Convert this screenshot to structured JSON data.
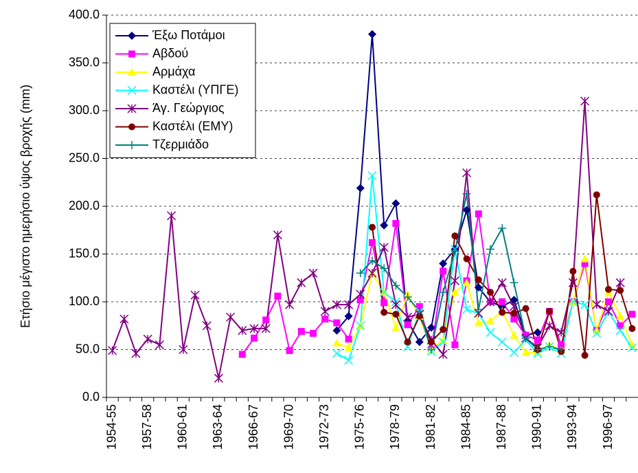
{
  "chart_data": {
    "type": "line",
    "y_label": "Ετήσιο μέγιστο ημερήσιο ύψος βροχής (mm)",
    "categories": [
      "1954-55",
      null,
      null,
      "1957-58",
      null,
      null,
      "1960-61",
      null,
      null,
      "1963-64",
      null,
      null,
      "1966-67",
      null,
      null,
      "1969-70",
      null,
      null,
      "1972-73",
      null,
      null,
      "1975-76",
      null,
      null,
      "1978-79",
      null,
      null,
      "1981-82",
      null,
      null,
      "1984-85",
      null,
      null,
      "1987-88",
      null,
      null,
      "1990-91",
      null,
      null,
      "1993-94",
      null,
      null,
      "1996-97",
      null,
      null
    ],
    "ylim": [
      0,
      400
    ],
    "yticks": [
      {
        "value": 0,
        "label": "0.0"
      },
      {
        "value": 50,
        "label": "50.0"
      },
      {
        "value": 100,
        "label": "100.0"
      },
      {
        "value": 150,
        "label": "150.0"
      },
      {
        "value": 200,
        "label": "200.0"
      },
      {
        "value": 250,
        "label": "250.0"
      },
      {
        "value": 300,
        "label": "300.0"
      },
      {
        "value": 350,
        "label": "350.0"
      },
      {
        "value": 400,
        "label": "400.0"
      }
    ],
    "grid": true,
    "legend": "top-left",
    "series": [
      {
        "name": "Έξω Ποτάμοι",
        "color": "#000080",
        "marker": "diamond",
        "values": [
          null,
          null,
          null,
          null,
          null,
          null,
          null,
          null,
          null,
          null,
          null,
          null,
          null,
          null,
          null,
          null,
          null,
          null,
          null,
          70,
          85,
          219,
          380,
          180,
          203,
          80,
          58,
          73,
          140,
          155,
          196,
          115,
          100,
          95,
          102,
          65,
          68,
          null,
          null,
          null,
          null,
          null,
          null,
          null,
          null
        ]
      },
      {
        "name": "Αβδού",
        "color": "#ff00ff",
        "marker": "square",
        "values": [
          null,
          null,
          null,
          null,
          null,
          null,
          null,
          null,
          null,
          null,
          null,
          45,
          62,
          81,
          106,
          49,
          69,
          67,
          82,
          78,
          61,
          102,
          162,
          99,
          182,
          76,
          95,
          50,
          132,
          55,
          122,
          192,
          100,
          100,
          82,
          65,
          60,
          90,
          55,
          100,
          140,
          70,
          100,
          75,
          87
        ]
      },
      {
        "name": "Αρμάχα",
        "color": "#ffff00",
        "marker": "triangle",
        "values": [
          null,
          null,
          null,
          null,
          null,
          null,
          null,
          null,
          null,
          null,
          null,
          null,
          null,
          null,
          null,
          null,
          null,
          null,
          null,
          57,
          52,
          75,
          130,
          110,
          73,
          108,
          85,
          50,
          60,
          110,
          120,
          78,
          80,
          90,
          65,
          47,
          47,
          55,
          50,
          100,
          145,
          70,
          110,
          85,
          55
        ]
      },
      {
        "name": "Καστέλι (ΥΠΓΕ)",
        "color": "#00ffff",
        "marker": "x",
        "values": [
          null,
          null,
          null,
          null,
          null,
          null,
          null,
          null,
          null,
          null,
          null,
          null,
          null,
          null,
          null,
          null,
          null,
          null,
          null,
          46,
          39,
          75,
          232,
          110,
          100,
          53,
          90,
          48,
          58,
          155,
          92,
          88,
          68,
          58,
          47,
          60,
          46,
          53,
          46,
          100,
          97,
          67,
          90,
          70,
          52
        ]
      },
      {
        "name": "Άγ. Γεώργιος",
        "color": "#800080",
        "marker": "star",
        "values": [
          49,
          82,
          46,
          61,
          55,
          190,
          50,
          107,
          75,
          20,
          84,
          70,
          72,
          72,
          170,
          97,
          120,
          130,
          90,
          97,
          97,
          108,
          130,
          157,
          97,
          84,
          87,
          60,
          45,
          122,
          235,
          88,
          100,
          120,
          95,
          62,
          52,
          75,
          68,
          120,
          310,
          97,
          90,
          120,
          null
        ]
      },
      {
        "name": "Καστέλι (ΕΜΥ)",
        "color": "#800000",
        "marker": "circle",
        "values": [
          null,
          null,
          null,
          null,
          null,
          null,
          null,
          null,
          null,
          null,
          null,
          null,
          null,
          null,
          null,
          null,
          null,
          null,
          null,
          null,
          null,
          null,
          178,
          89,
          87,
          58,
          85,
          58,
          71,
          169,
          145,
          123,
          110,
          89,
          88,
          93,
          50,
          90,
          48,
          132,
          44,
          212,
          113,
          112,
          72
        ]
      },
      {
        "name": "Τζερμιάδο",
        "color": "#008080",
        "marker": "plus",
        "values": [
          null,
          null,
          null,
          null,
          null,
          null,
          null,
          null,
          null,
          null,
          null,
          null,
          null,
          null,
          null,
          null,
          null,
          null,
          null,
          null,
          null,
          130,
          143,
          135,
          117,
          105,
          90,
          50,
          110,
          153,
          213,
          92,
          155,
          177,
          120,
          62,
          50,
          53,
          50,
          null,
          null,
          null,
          null,
          null,
          null
        ]
      }
    ]
  }
}
